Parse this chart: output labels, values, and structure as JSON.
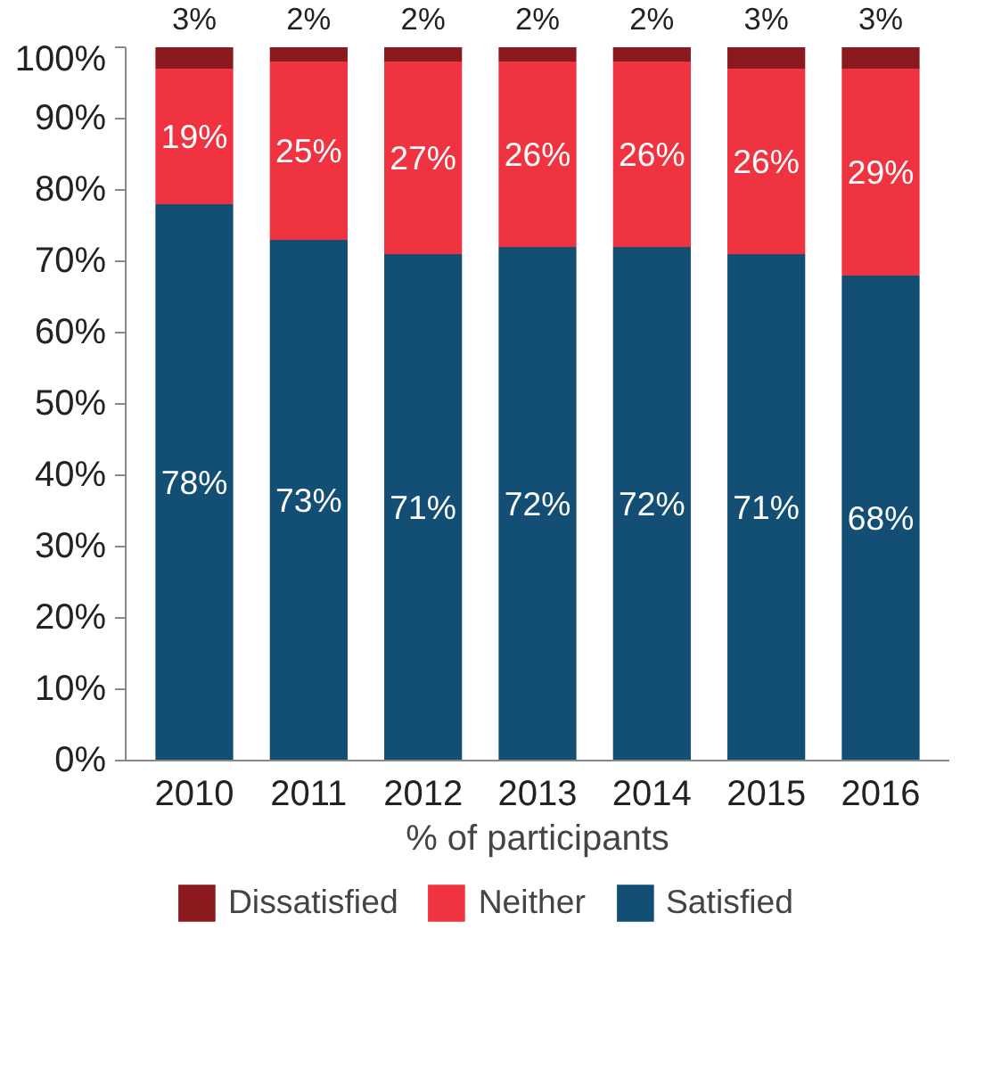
{
  "chart_data": {
    "type": "bar",
    "stacked": true,
    "xlabel": "% of participants",
    "categories": [
      "2010",
      "2011",
      "2012",
      "2013",
      "2014",
      "2015",
      "2016"
    ],
    "series": [
      {
        "name": "Satisfied",
        "color": "#134f74",
        "values": [
          78,
          73,
          71,
          72,
          72,
          71,
          68
        ],
        "value_labels": [
          "78%",
          "73%",
          "71%",
          "72%",
          "72%",
          "71%",
          "68%"
        ]
      },
      {
        "name": "Neither",
        "color": "#ef3340",
        "values": [
          19,
          25,
          27,
          26,
          26,
          26,
          29
        ],
        "value_labels": [
          "19%",
          "25%",
          "27%",
          "26%",
          "26%",
          "26%",
          "29%"
        ]
      },
      {
        "name": "Dissatisfied",
        "color": "#8b1a1f",
        "values": [
          3,
          2,
          2,
          2,
          2,
          3,
          3
        ],
        "value_labels": [
          "3%",
          "2%",
          "2%",
          "2%",
          "2%",
          "3%",
          "3%"
        ]
      }
    ],
    "ylim": [
      0,
      100
    ],
    "yticks": [
      {
        "value": 0,
        "label": "0%"
      },
      {
        "value": 10,
        "label": "10%"
      },
      {
        "value": 20,
        "label": "20%"
      },
      {
        "value": 30,
        "label": "30%"
      },
      {
        "value": 40,
        "label": "40%"
      },
      {
        "value": 50,
        "label": "50%"
      },
      {
        "value": 60,
        "label": "60%"
      },
      {
        "value": 70,
        "label": "70%"
      },
      {
        "value": 80,
        "label": "80%"
      },
      {
        "value": 90,
        "label": "90%"
      },
      {
        "value": 100,
        "label": "100%"
      }
    ],
    "legend": "bottom"
  }
}
